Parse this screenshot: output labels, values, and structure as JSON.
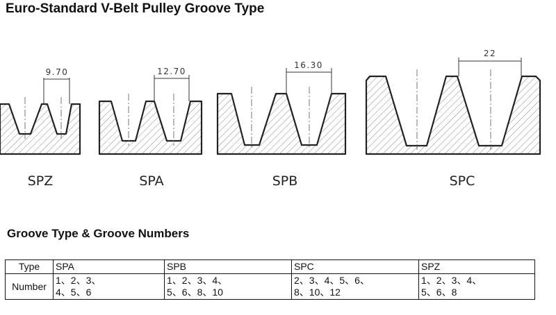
{
  "title": "Euro-Standard V-Belt Pulley Groove Type",
  "profiles": [
    {
      "name": "SPZ",
      "dimension": "9.70"
    },
    {
      "name": "SPA",
      "dimension": "12.70"
    },
    {
      "name": "SPB",
      "dimension": "16.30"
    },
    {
      "name": "SPC",
      "dimension": "22"
    }
  ],
  "table": {
    "title": "Groove Type & Groove Numbers",
    "rows": [
      [
        [
          "Type"
        ],
        [
          "SPA"
        ],
        [
          "SPB"
        ],
        [
          "SPC"
        ],
        [
          "SPZ"
        ]
      ],
      [
        [
          "Number"
        ],
        [
          "1、2、3、",
          "4、5、6"
        ],
        [
          "1、2、3、4、",
          "5、6、8、10"
        ],
        [
          "2、3、4、5、6、",
          "8、10、12"
        ],
        [
          "1、2、3、4、",
          "5、6、8"
        ]
      ]
    ]
  }
}
